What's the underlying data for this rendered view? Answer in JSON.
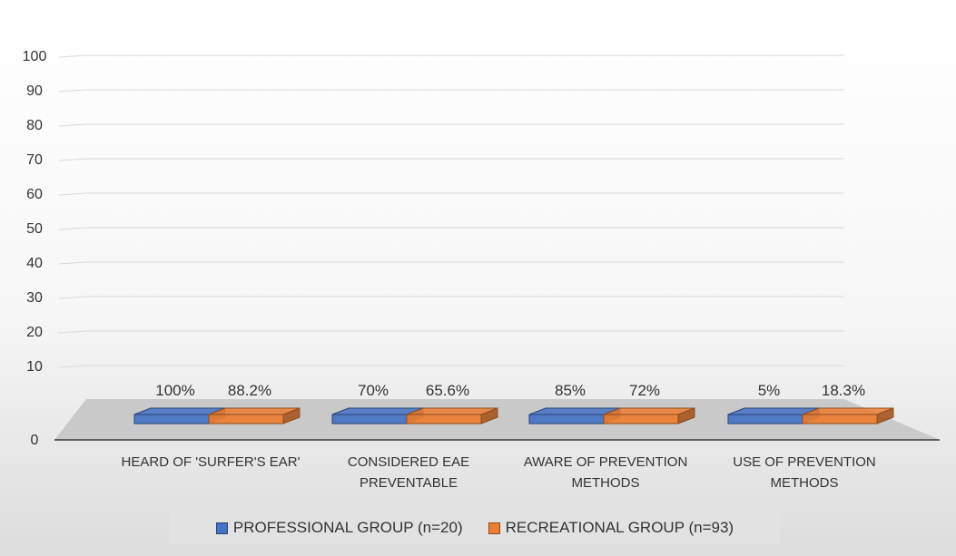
{
  "chart_data": {
    "type": "bar",
    "categories": [
      [
        "HEARD OF 'SURFER'S EAR'"
      ],
      [
        "CONSIDERED EAE",
        "PREVENTABLE"
      ],
      [
        "AWARE OF PREVENTION",
        "METHODS"
      ],
      [
        "USE OF PREVENTION",
        "METHODS"
      ]
    ],
    "series": [
      {
        "name": "PROFESSIONAL GROUP (n=20)",
        "values": [
          100,
          70,
          85,
          5
        ],
        "labels": [
          "100%",
          "70%",
          "85%",
          "5%"
        ],
        "color": "#4472C4"
      },
      {
        "name": "RECREATIONAL GROUP (n=93)",
        "values": [
          88.2,
          65.6,
          72,
          18.3
        ],
        "labels": [
          "88.2%",
          "65.6%",
          "72%",
          "18.3%"
        ],
        "color": "#ED7D31"
      }
    ],
    "y_ticks": [
      "0",
      "10",
      "20",
      "30",
      "40",
      "50",
      "60",
      "70",
      "80",
      "90",
      "100"
    ],
    "ylim": [
      0,
      100
    ],
    "grid": true,
    "legend": "bottom",
    "style": "3d-bar"
  }
}
